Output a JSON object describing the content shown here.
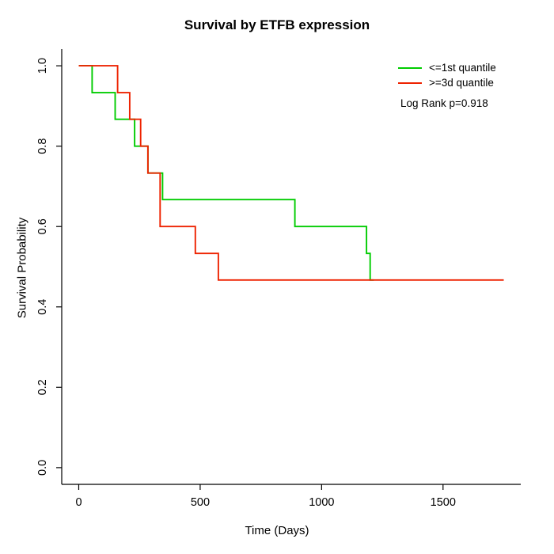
{
  "title": "Survival by ETFB expression",
  "xlabel": "Time (Days)",
  "ylabel": "Survival Probability",
  "legend": {
    "items": [
      {
        "label": "<=1st quantile",
        "color": "#00cc00"
      },
      {
        "label": ">=3d quantile",
        "color": "#ee2200"
      }
    ],
    "note": "Log Rank p=0.918"
  },
  "chart_data": {
    "type": "line",
    "subtype": "kaplan-meier-step",
    "title": "Survival by ETFB expression",
    "xlabel": "Time (Days)",
    "ylabel": "Survival Probability",
    "xlim": [
      0,
      1750
    ],
    "ylim": [
      0,
      1
    ],
    "grid": false,
    "legend_position": "top-right",
    "annotation": "Log Rank p=0.918",
    "xticks": [
      {
        "v": 0,
        "label": "0"
      },
      {
        "v": 500,
        "label": "500"
      },
      {
        "v": 1000,
        "label": "1000"
      },
      {
        "v": 1500,
        "label": "1500"
      }
    ],
    "yticks": [
      {
        "v": 0.0,
        "label": "0.0"
      },
      {
        "v": 0.2,
        "label": "0.2"
      },
      {
        "v": 0.4,
        "label": "0.4"
      },
      {
        "v": 0.6,
        "label": "0.6"
      },
      {
        "v": 0.8,
        "label": "0.8"
      },
      {
        "v": 1.0,
        "label": "1.0"
      }
    ],
    "series": [
      {
        "name": "<=1st quantile",
        "color": "#00cc00",
        "step": true,
        "points": [
          [
            0,
            1.0
          ],
          [
            55,
            0.933
          ],
          [
            150,
            0.867
          ],
          [
            230,
            0.8
          ],
          [
            285,
            0.733
          ],
          [
            345,
            0.667
          ],
          [
            890,
            0.6
          ],
          [
            1185,
            0.533
          ],
          [
            1200,
            0.467
          ],
          [
            1215,
            0.467
          ]
        ]
      },
      {
        "name": ">=3d quantile",
        "color": "#ee2200",
        "step": true,
        "points": [
          [
            0,
            1.0
          ],
          [
            160,
            0.933
          ],
          [
            210,
            0.867
          ],
          [
            255,
            0.8
          ],
          [
            285,
            0.733
          ],
          [
            335,
            0.6
          ],
          [
            480,
            0.533
          ],
          [
            575,
            0.467
          ],
          [
            1750,
            0.467
          ]
        ]
      }
    ]
  }
}
